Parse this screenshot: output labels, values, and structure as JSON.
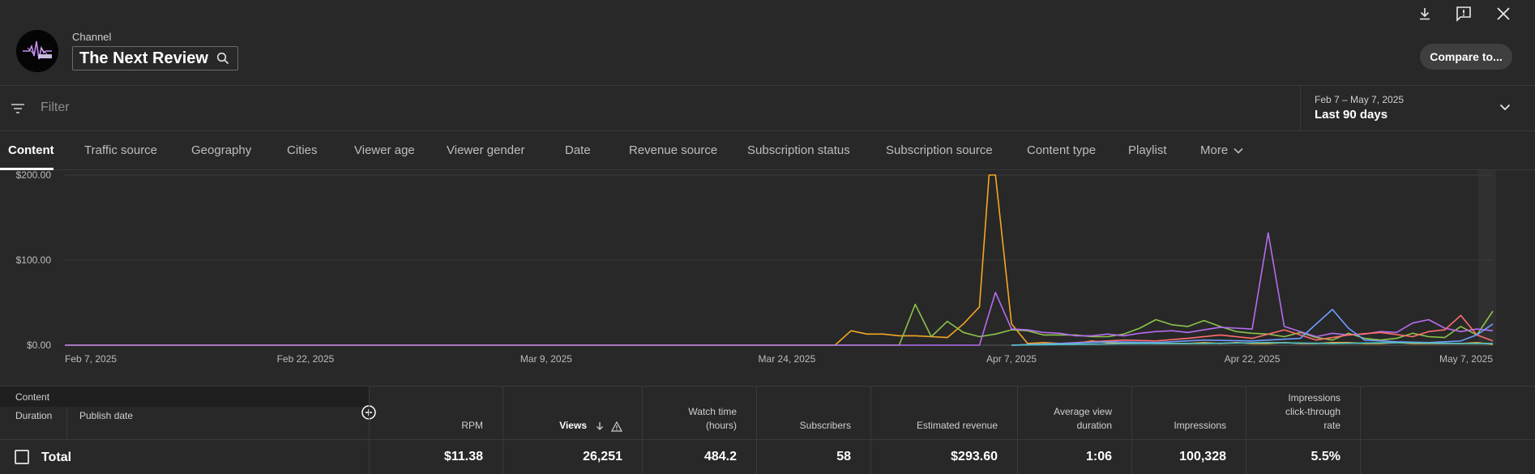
{
  "header": {
    "channel_caption": "Channel",
    "channel_name": "The Next Review",
    "compare_label": "Compare to..."
  },
  "filter": {
    "placeholder": "Filter",
    "date_range": "Feb 7 – May 7, 2025",
    "date_label": "Last 90 days"
  },
  "tabs": [
    {
      "label": "Content"
    },
    {
      "label": "Traffic source"
    },
    {
      "label": "Geography"
    },
    {
      "label": "Cities"
    },
    {
      "label": "Viewer age"
    },
    {
      "label": "Viewer gender"
    },
    {
      "label": "Date"
    },
    {
      "label": "Revenue source"
    },
    {
      "label": "Subscription status"
    },
    {
      "label": "Subscription source"
    },
    {
      "label": "Content type"
    },
    {
      "label": "Playlist"
    },
    {
      "label": "More"
    }
  ],
  "chart_data": {
    "type": "line",
    "y_tick_labels": [
      "$0.00",
      "$100.00",
      "$200.00"
    ],
    "y_ticks": [
      0,
      100,
      200
    ],
    "ylim": [
      0,
      200
    ],
    "x_tick_labels": [
      "Feb 7, 2025",
      "Feb 22, 2025",
      "Mar 9, 2025",
      "Mar 24, 2025",
      "Apr 7, 2025",
      "Apr 22, 2025",
      "May 7, 2025"
    ],
    "x_tick_days": [
      0,
      15,
      30,
      45,
      59,
      74,
      89
    ],
    "series": [
      {
        "color": "#f5a623",
        "points": [
          [
            0,
            0
          ],
          [
            48,
            0
          ],
          [
            49,
            17
          ],
          [
            50,
            13
          ],
          [
            51,
            13
          ],
          [
            52,
            11
          ],
          [
            53,
            11
          ],
          [
            54,
            10
          ],
          [
            55,
            9
          ],
          [
            56,
            25
          ],
          [
            57,
            45
          ],
          [
            57.6,
            200
          ],
          [
            58,
            200
          ],
          [
            59,
            25
          ],
          [
            60,
            2
          ],
          [
            61,
            3
          ],
          [
            62,
            2
          ],
          [
            63,
            2
          ],
          [
            64,
            5
          ],
          [
            65,
            3
          ],
          [
            66,
            2
          ],
          [
            67,
            3
          ],
          [
            68,
            2
          ],
          [
            69,
            2
          ],
          [
            70,
            2
          ],
          [
            71,
            3
          ],
          [
            72,
            2
          ],
          [
            73,
            3
          ],
          [
            74,
            2
          ],
          [
            75,
            2
          ],
          [
            76,
            3
          ],
          [
            77,
            2
          ],
          [
            78,
            2
          ],
          [
            79,
            3
          ],
          [
            80,
            3
          ],
          [
            81,
            2
          ],
          [
            82,
            2
          ],
          [
            83,
            3
          ],
          [
            84,
            2
          ],
          [
            85,
            2
          ],
          [
            86,
            2
          ],
          [
            87,
            2
          ],
          [
            88,
            3
          ],
          [
            89,
            1
          ]
        ]
      },
      {
        "color": "#8bc34a",
        "points": [
          [
            0,
            0
          ],
          [
            52,
            0
          ],
          [
            53,
            48
          ],
          [
            54,
            10
          ],
          [
            55,
            28
          ],
          [
            56,
            15
          ],
          [
            57,
            10
          ],
          [
            58,
            13
          ],
          [
            59,
            18
          ],
          [
            60,
            17
          ],
          [
            61,
            12
          ],
          [
            62,
            12
          ],
          [
            63,
            12
          ],
          [
            64,
            10
          ],
          [
            65,
            10
          ],
          [
            66,
            13
          ],
          [
            67,
            20
          ],
          [
            68,
            30
          ],
          [
            69,
            24
          ],
          [
            70,
            22
          ],
          [
            71,
            29
          ],
          [
            72,
            22
          ],
          [
            73,
            16
          ],
          [
            74,
            14
          ],
          [
            75,
            13
          ],
          [
            76,
            10
          ],
          [
            77,
            15
          ],
          [
            78,
            9
          ],
          [
            79,
            6
          ],
          [
            80,
            14
          ],
          [
            81,
            8
          ],
          [
            82,
            6
          ],
          [
            83,
            8
          ],
          [
            84,
            14
          ],
          [
            85,
            10
          ],
          [
            86,
            9
          ],
          [
            87,
            22
          ],
          [
            88,
            12
          ],
          [
            89,
            40
          ]
        ]
      },
      {
        "color": "#b56cf0",
        "points": [
          [
            0,
            0
          ],
          [
            56,
            0
          ],
          [
            57,
            0
          ],
          [
            58,
            62
          ],
          [
            59,
            19
          ],
          [
            60,
            18
          ],
          [
            61,
            15
          ],
          [
            62,
            14
          ],
          [
            63,
            11
          ],
          [
            64,
            11
          ],
          [
            65,
            13
          ],
          [
            66,
            11
          ],
          [
            67,
            14
          ],
          [
            68,
            16
          ],
          [
            69,
            17
          ],
          [
            70,
            15
          ],
          [
            71,
            18
          ],
          [
            72,
            21
          ],
          [
            73,
            20
          ],
          [
            74,
            19
          ],
          [
            75,
            132
          ],
          [
            76,
            22
          ],
          [
            77,
            16
          ],
          [
            78,
            10
          ],
          [
            79,
            14
          ],
          [
            80,
            12
          ],
          [
            81,
            13
          ],
          [
            82,
            16
          ],
          [
            83,
            15
          ],
          [
            84,
            26
          ],
          [
            85,
            30
          ],
          [
            86,
            20
          ],
          [
            87,
            16
          ],
          [
            88,
            19
          ],
          [
            89,
            17
          ]
        ]
      },
      {
        "color": "#ff6e6e",
        "points": [
          [
            59,
            0
          ],
          [
            62,
            2
          ],
          [
            64,
            4
          ],
          [
            66,
            6
          ],
          [
            68,
            5
          ],
          [
            70,
            8
          ],
          [
            72,
            12
          ],
          [
            74,
            8
          ],
          [
            76,
            18
          ],
          [
            78,
            6
          ],
          [
            80,
            12
          ],
          [
            82,
            15
          ],
          [
            84,
            10
          ],
          [
            85,
            16
          ],
          [
            86,
            18
          ],
          [
            87,
            35
          ],
          [
            88,
            12
          ],
          [
            89,
            5
          ]
        ]
      },
      {
        "color": "#6f9cff",
        "points": [
          [
            59,
            0
          ],
          [
            62,
            2
          ],
          [
            65,
            4
          ],
          [
            68,
            3
          ],
          [
            71,
            6
          ],
          [
            74,
            5
          ],
          [
            77,
            8
          ],
          [
            79,
            42
          ],
          [
            80,
            20
          ],
          [
            81,
            6
          ],
          [
            83,
            4
          ],
          [
            85,
            3
          ],
          [
            87,
            5
          ],
          [
            88,
            12
          ],
          [
            89,
            25
          ]
        ]
      },
      {
        "color": "#4fc3c8",
        "points": [
          [
            59,
            0
          ],
          [
            63,
            1
          ],
          [
            67,
            2
          ],
          [
            71,
            2
          ],
          [
            75,
            3
          ],
          [
            79,
            2
          ],
          [
            83,
            3
          ],
          [
            87,
            2
          ],
          [
            89,
            2
          ]
        ]
      }
    ]
  },
  "table": {
    "content_label": "Content",
    "duration_label": "Duration",
    "publish_date_label": "Publish date",
    "total_label": "Total",
    "metrics": [
      {
        "label": "RPM",
        "value": "$11.38"
      },
      {
        "label": "Views",
        "value": "26,251"
      },
      {
        "label": "Watch time (hours)",
        "value": "484.2"
      },
      {
        "label": "Subscribers",
        "value": "58"
      },
      {
        "label": "Estimated revenue",
        "value": "$293.60"
      },
      {
        "label": "Average view duration",
        "value": "1:06"
      },
      {
        "label": "Impressions",
        "value": "100,328"
      },
      {
        "label": "Impressions click-through rate",
        "value": "5.5%"
      }
    ]
  }
}
